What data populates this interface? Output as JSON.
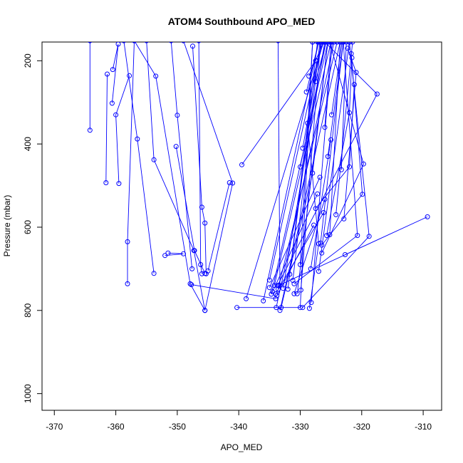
{
  "chart_data": {
    "type": "line",
    "title": "ATOM4 Southbound APO_MED",
    "xlabel": "APO_MED",
    "ylabel": "Pressure (mbar)",
    "xlim": [
      -372,
      -307
    ],
    "ylim": [
      1040,
      155
    ],
    "y_reversed": true,
    "grid": false,
    "legend": "none",
    "series_color": "#0000ff",
    "x_ticks": [
      -370,
      -360,
      -350,
      -340,
      -330,
      -320,
      -310
    ],
    "y_ticks": [
      200,
      400,
      600,
      800,
      1000
    ],
    "x_tick_labels": [
      "-370",
      "-360",
      "-350",
      "-340",
      "-330",
      "-320",
      "-310"
    ],
    "y_tick_labels": [
      "200",
      "400",
      "600",
      "800",
      "1000"
    ],
    "series": [
      {
        "values": [
          [
            -364.2,
            152
          ],
          [
            -364.2,
            367
          ]
        ]
      },
      {
        "values": [
          [
            -361.4,
            232
          ],
          [
            -361.6,
            493
          ]
        ]
      },
      {
        "values": [
          [
            -360.5,
            221
          ],
          [
            -359.6,
            160
          ],
          [
            -360.6,
            302
          ]
        ]
      },
      {
        "values": [
          [
            -359.5,
            495
          ],
          [
            -360.0,
            330
          ],
          [
            -357.8,
            236
          ]
        ]
      },
      {
        "values": [
          [
            -357.0,
            152
          ],
          [
            -358.1,
            635
          ],
          [
            -358.1,
            736
          ]
        ]
      },
      {
        "values": [
          [
            -357.0,
            152
          ],
          [
            -353.5,
            237
          ],
          [
            -347.9,
            736
          ],
          [
            -345.5,
            800
          ]
        ]
      },
      {
        "values": [
          [
            -358.7,
            152
          ],
          [
            -356.5,
            388
          ],
          [
            -353.8,
            711
          ]
        ]
      },
      {
        "values": [
          [
            -355.0,
            152
          ],
          [
            -353.8,
            438
          ],
          [
            -347.3,
            656
          ],
          [
            -345.5,
            800
          ]
        ]
      },
      {
        "values": [
          [
            -351.0,
            152
          ],
          [
            -350.0,
            331
          ],
          [
            -347.6,
            700
          ]
        ]
      },
      {
        "values": [
          [
            -347.5,
            165
          ],
          [
            -346.0,
            552
          ],
          [
            -345.5,
            590
          ],
          [
            -345.3,
            712
          ]
        ]
      },
      {
        "values": [
          [
            -350.2,
            406
          ],
          [
            -347.2,
            656
          ],
          [
            -345.5,
            711
          ]
        ]
      },
      {
        "values": [
          [
            -352.0,
            668
          ],
          [
            -349.0,
            664
          ],
          [
            -351.5,
            662
          ]
        ]
      },
      {
        "values": [
          [
            -346.5,
            152
          ],
          [
            -346.2,
            690
          ],
          [
            -346.0,
            712
          ]
        ]
      },
      {
        "values": [
          [
            -341.5,
            493
          ],
          [
            -345.0,
            705
          ]
        ]
      },
      {
        "values": [
          [
            -339.5,
            450
          ],
          [
            -327.5,
            200
          ]
        ]
      },
      {
        "values": [
          [
            -349.0,
            152
          ],
          [
            -341.0,
            494
          ],
          [
            -345.5,
            800
          ]
        ]
      },
      {
        "values": [
          [
            -347.7,
            738
          ],
          [
            -334.0,
            772
          ]
        ]
      },
      {
        "values": [
          [
            -338.8,
            772
          ],
          [
            -326.2,
            155
          ]
        ]
      },
      {
        "values": [
          [
            -340.3,
            793
          ],
          [
            -330.0,
            793
          ],
          [
            -328.0,
            155
          ]
        ]
      },
      {
        "values": [
          [
            -336.0,
            777
          ],
          [
            -327.0,
            155
          ]
        ]
      },
      {
        "values": [
          [
            -335.0,
            727
          ],
          [
            -326.5,
            155
          ]
        ]
      },
      {
        "values": [
          [
            -334.7,
            761
          ],
          [
            -325.5,
            155
          ]
        ]
      },
      {
        "values": [
          [
            -334.2,
            740
          ],
          [
            -325.0,
            155
          ]
        ]
      },
      {
        "values": [
          [
            -333.9,
            793
          ],
          [
            -324.5,
            155
          ]
        ]
      },
      {
        "values": [
          [
            -333.6,
            749
          ],
          [
            -324.0,
            155
          ]
        ]
      },
      {
        "values": [
          [
            -333.3,
            800
          ],
          [
            -323.5,
            155
          ]
        ]
      },
      {
        "values": [
          [
            -333.6,
            152
          ],
          [
            -333.3,
            740
          ]
        ]
      },
      {
        "values": [
          [
            -333.1,
            793
          ],
          [
            -328.0,
            470
          ],
          [
            -325.5,
            155
          ]
        ]
      },
      {
        "values": [
          [
            -332.8,
            747
          ],
          [
            -326.0,
            155
          ]
        ]
      },
      {
        "values": [
          [
            -332.0,
            749
          ],
          [
            -327.3,
            200
          ]
        ]
      },
      {
        "values": [
          [
            -331.2,
            728
          ],
          [
            -326.8,
            155
          ]
        ]
      },
      {
        "values": [
          [
            -330.5,
            760
          ],
          [
            -325.5,
            155
          ]
        ]
      },
      {
        "values": [
          [
            -329.9,
            751
          ],
          [
            -326.7,
            155
          ]
        ]
      },
      {
        "values": [
          [
            -328.2,
            781
          ],
          [
            -324.8,
            155
          ]
        ]
      },
      {
        "values": [
          [
            -327.0,
            706
          ],
          [
            -322.0,
            155
          ]
        ]
      },
      {
        "values": [
          [
            -328.5,
            795
          ],
          [
            -327.0,
            640
          ],
          [
            -328.8,
            350
          ]
        ]
      },
      {
        "values": [
          [
            -326.7,
            638
          ],
          [
            -323.0,
            155
          ]
        ]
      },
      {
        "values": [
          [
            -325.2,
            618
          ],
          [
            -323.5,
            155
          ]
        ]
      },
      {
        "values": [
          [
            -324.2,
            570
          ],
          [
            -321.5,
            155
          ]
        ]
      },
      {
        "values": [
          [
            -329.6,
            410
          ],
          [
            -326.5,
            155
          ]
        ]
      },
      {
        "values": [
          [
            -329.0,
            275
          ],
          [
            -327.0,
            155
          ]
        ]
      },
      {
        "values": [
          [
            -330.0,
            455
          ],
          [
            -325.8,
            155
          ]
        ]
      },
      {
        "values": [
          [
            -328.6,
            237
          ],
          [
            -326.2,
            155
          ]
        ]
      },
      {
        "values": [
          [
            -330.0,
            690
          ],
          [
            -328.0,
            155
          ]
        ]
      },
      {
        "values": [
          [
            -331.7,
            713
          ],
          [
            -327.2,
            155
          ]
        ]
      },
      {
        "values": [
          [
            -326.0,
            360
          ],
          [
            -325.0,
            155
          ]
        ]
      },
      {
        "values": [
          [
            -325.5,
            430
          ],
          [
            -323.0,
            155
          ]
        ]
      },
      {
        "values": [
          [
            -327.5,
            250
          ],
          [
            -325.8,
            155
          ]
        ]
      },
      {
        "values": [
          [
            -323.3,
            462
          ],
          [
            -322.5,
            155
          ]
        ]
      },
      {
        "values": [
          [
            -324.9,
            330
          ],
          [
            -323.2,
            155
          ]
        ]
      },
      {
        "values": [
          [
            -333.7,
            740
          ],
          [
            -317.5,
            280
          ],
          [
            -326.0,
            155
          ]
        ]
      },
      {
        "values": [
          [
            -326.5,
            662
          ],
          [
            -319.7,
            448
          ],
          [
            -325.2,
            155
          ]
        ]
      },
      {
        "values": [
          [
            -322.7,
            666
          ],
          [
            -309.3,
            575
          ],
          [
            -333.5,
            740
          ]
        ]
      },
      {
        "values": [
          [
            -331.0,
            736
          ],
          [
            -320.7,
            620
          ],
          [
            -323.0,
            155
          ]
        ]
      },
      {
        "values": [
          [
            -329.6,
            793
          ],
          [
            -318.8,
            622
          ],
          [
            -322.0,
            155
          ]
        ]
      },
      {
        "values": [
          [
            -326.5,
            643
          ],
          [
            -319.9,
            521
          ],
          [
            -321.7,
            183
          ]
        ]
      },
      {
        "values": [
          [
            -325.7,
            620
          ],
          [
            -322.0,
            325
          ],
          [
            -321.6,
            193
          ]
        ]
      },
      {
        "values": [
          [
            -327.5,
            555
          ],
          [
            -322.0,
            455
          ],
          [
            -321.2,
            257
          ]
        ]
      },
      {
        "values": [
          [
            -322.9,
            580
          ],
          [
            -320.9,
            228
          ],
          [
            -322.3,
            170
          ]
        ]
      },
      {
        "values": [
          [
            -335.0,
            745
          ],
          [
            -326.8,
            480
          ]
        ]
      },
      {
        "values": [
          [
            -334.5,
            755
          ],
          [
            -327.2,
            520
          ]
        ]
      },
      {
        "values": [
          [
            -334.0,
            760
          ],
          [
            -326.2,
            565
          ]
        ]
      },
      {
        "values": [
          [
            -333.8,
            765
          ],
          [
            -327.8,
            595
          ]
        ]
      },
      {
        "values": [
          [
            -331.0,
            760
          ],
          [
            -326.0,
            533
          ]
        ]
      },
      {
        "values": [
          [
            -328.3,
            700
          ],
          [
            -325.0,
            390
          ]
        ]
      }
    ]
  }
}
